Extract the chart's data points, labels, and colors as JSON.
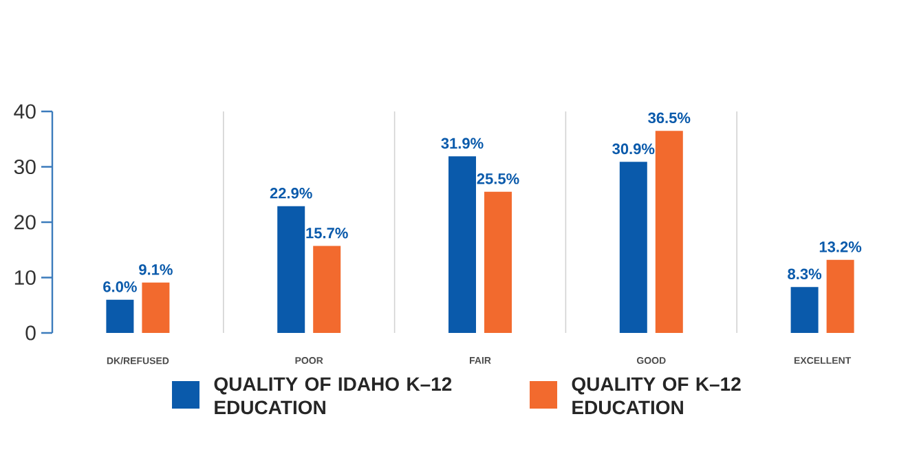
{
  "chart_data": {
    "type": "bar",
    "categories": [
      "DK/REFUSED",
      "POOR",
      "FAIR",
      "GOOD",
      "EXCELLENT"
    ],
    "series": [
      {
        "name": "QUALITY OF IDAHO K–12 EDUCATION",
        "color": "#0a5aab",
        "values": [
          6.0,
          22.9,
          31.9,
          30.9,
          8.3
        ],
        "value_labels": [
          "6.0%",
          "22.9%",
          "31.9%",
          "30.9%",
          "8.3%"
        ]
      },
      {
        "name": "QUALITY OF K–12 EDUCATION",
        "color": "#f26a2e",
        "values": [
          9.1,
          15.7,
          25.5,
          36.5,
          13.2
        ],
        "value_labels": [
          "9.1%",
          "15.7%",
          "25.5%",
          "36.5%",
          "13.2%"
        ]
      }
    ],
    "ylim": [
      0,
      40
    ],
    "yticks": [
      0,
      10,
      20,
      30,
      40
    ],
    "grid": "x",
    "legend": "bottom"
  }
}
